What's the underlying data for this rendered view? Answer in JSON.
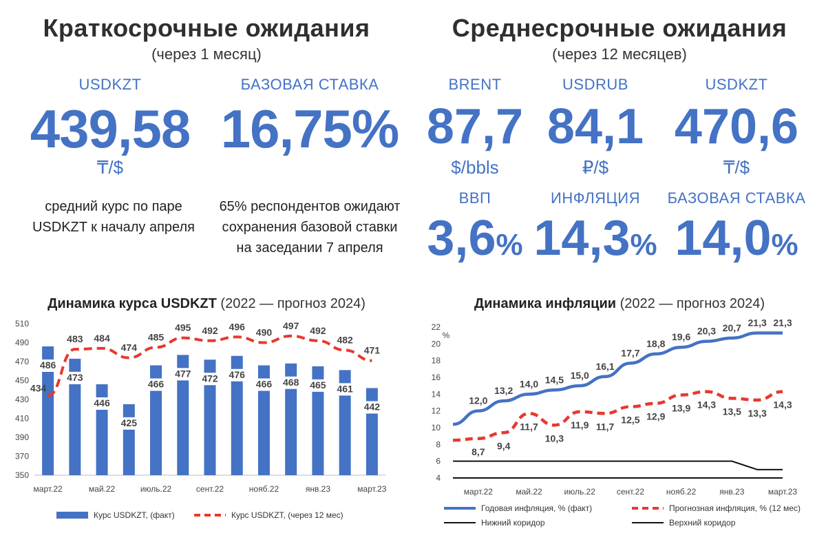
{
  "left": {
    "title": "Краткосрочные ожидания",
    "subtitle": "(через 1 месяц)",
    "kpis": [
      {
        "label": "USDKZT",
        "value": "439,58",
        "unit": "₸/$",
        "note": [
          "средний курс по паре",
          "USDKZT к началу апреля"
        ]
      },
      {
        "label": "БАЗОВАЯ СТАВКА",
        "value": "16,75%",
        "unit": "",
        "note": [
          "65% респондентов ожидают",
          "сохранения базовой ставки",
          "на заседании 7 апреля"
        ]
      }
    ]
  },
  "right": {
    "title": "Среднесрочные ожидания",
    "subtitle": "(через 12 месяцев)",
    "kpis_top": [
      {
        "label": "BRENT",
        "value": "87,7",
        "unit": "$/bbls"
      },
      {
        "label": "USDRUB",
        "value": "84,1",
        "unit": "₽/$"
      },
      {
        "label": "USDKZT",
        "value": "470,6",
        "unit": "₸/$"
      }
    ],
    "kpis_bottom": [
      {
        "label": "ВВП",
        "value": "3,6",
        "pct": "%"
      },
      {
        "label": "ИНФЛЯЦИЯ",
        "value": "14,3",
        "pct": "%"
      },
      {
        "label": "БАЗОВАЯ СТАВКА",
        "value": "14,0",
        "pct": "%"
      }
    ]
  },
  "chart_data": [
    {
      "type": "bar",
      "title": "Динамика курса USDKZT",
      "title_suffix": "(2022 — прогноз 2024)",
      "ylim": [
        350,
        510
      ],
      "yticks": [
        "350",
        "370",
        "390",
        "410",
        "430",
        "450",
        "470",
        "490",
        "510"
      ],
      "xtick_labels": [
        "март.22",
        "май.22",
        "июль.22",
        "сент.22",
        "нояб.22",
        "янв.23",
        "март.23"
      ],
      "categories": [
        "март.22",
        "апр.22",
        "май.22",
        "июнь.22",
        "июль.22",
        "авг.22",
        "сент.22",
        "окт.22",
        "нояб.22",
        "дек.22",
        "янв.23",
        "фев.23",
        "март.23"
      ],
      "series": [
        {
          "name": "Курс USDKZT, (факт)",
          "kind": "bar",
          "color": "#4472c4",
          "values": [
            486,
            473,
            446,
            425,
            466,
            477,
            472,
            476,
            466,
            468,
            465,
            461,
            442
          ]
        },
        {
          "name": "Курс USDKZT, (через 12 мес)",
          "kind": "dashed-line",
          "color": "#e8382f",
          "values": [
            434,
            483,
            484,
            474,
            485,
            495,
            492,
            496,
            490,
            497,
            492,
            482,
            471
          ]
        }
      ],
      "legend": "bottom"
    },
    {
      "type": "line",
      "title": "Динамика инфляции",
      "title_suffix": "(2022 — прогноз 2024)",
      "ylabel": "%",
      "ylim": [
        4,
        22
      ],
      "yticks": [
        "4",
        "6",
        "8",
        "10",
        "12",
        "14",
        "16",
        "18",
        "20",
        "22"
      ],
      "xtick_labels": [
        "март.22",
        "май.22",
        "июль.22",
        "сент.22",
        "нояб.22",
        "янв.23",
        "март.23"
      ],
      "categories": [
        "фев.22",
        "март.22",
        "апр.22",
        "май.22",
        "июнь.22",
        "июль.22",
        "авг.22",
        "сент.22",
        "окт.22",
        "нояб.22",
        "дек.22",
        "янв.23",
        "фев.23",
        "март.23"
      ],
      "series": [
        {
          "name": "Годовая инфляция, % (факт)",
          "kind": "line",
          "color": "#4472c4",
          "values": [
            10.4,
            12.0,
            13.2,
            14.0,
            14.5,
            15.0,
            16.1,
            17.7,
            18.8,
            19.6,
            20.3,
            20.7,
            21.3,
            21.3
          ],
          "labels": [
            "",
            "12,0",
            "13,2",
            "14,0",
            "14,5",
            "15,0",
            "16,1",
            "17,7",
            "18,8",
            "19,6",
            "20,3",
            "20,7",
            "21,3",
            "21,3"
          ]
        },
        {
          "name": "Прогнозная инфляция, % (12 мес)",
          "kind": "dashed-line",
          "color": "#e8382f",
          "values": [
            8.5,
            8.7,
            9.4,
            11.7,
            10.3,
            11.9,
            11.7,
            12.5,
            12.9,
            13.9,
            14.3,
            13.5,
            13.3,
            14.3
          ],
          "labels": [
            "",
            "8,7",
            "9,4",
            "11,7",
            "10,3",
            "11,9",
            "11,7",
            "12,5",
            "12,9",
            "13,9",
            "14,3",
            "13,5",
            "13,3",
            "14,3"
          ]
        },
        {
          "name": "Нижний коридор",
          "kind": "line",
          "color": "#111111",
          "values": [
            4,
            4,
            4,
            4,
            4,
            4,
            4,
            4,
            4,
            4,
            4,
            4,
            4,
            4
          ]
        },
        {
          "name": "Верхний коридор",
          "kind": "line",
          "color": "#111111",
          "values": [
            6,
            6,
            6,
            6,
            6,
            6,
            6,
            6,
            6,
            6,
            6,
            6,
            5,
            5
          ]
        }
      ],
      "legend": "bottom"
    }
  ]
}
